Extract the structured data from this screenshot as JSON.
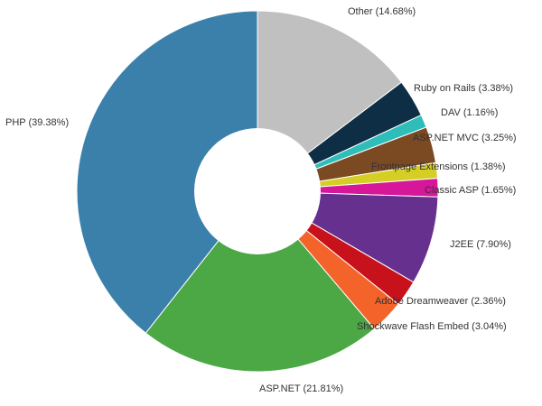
{
  "chart_data": {
    "type": "pie",
    "variant": "donut",
    "title": "",
    "labels": [
      "Other (14.68%)",
      "Ruby on Rails (3.38%)",
      "DAV (1.16%)",
      "ASP.NET MVC (3.25%)",
      "Frontpage Extensions (1.38%)",
      "Classic ASP (1.65%)",
      "J2EE (7.90%)",
      "Adobe Dreamweaver (2.36%)",
      "Shockwave Flash Embed (3.04%)",
      "ASP.NET (21.81%)",
      "PHP (39.38%)"
    ],
    "slices": [
      {
        "name": "Other",
        "value": 14.68,
        "color": "#c0c0c0"
      },
      {
        "name": "Ruby on Rails",
        "value": 3.38,
        "color": "#0e2e45"
      },
      {
        "name": "DAV",
        "value": 1.16,
        "color": "#2ebdb9"
      },
      {
        "name": "ASP.NET MVC",
        "value": 3.25,
        "color": "#7b4a22"
      },
      {
        "name": "Frontpage Extensions",
        "value": 1.38,
        "color": "#d5cf25"
      },
      {
        "name": "Classic ASP",
        "value": 1.65,
        "color": "#d6179a"
      },
      {
        "name": "J2EE",
        "value": 7.9,
        "color": "#66308f"
      },
      {
        "name": "Adobe Dreamweaver",
        "value": 2.36,
        "color": "#c8121b"
      },
      {
        "name": "Shockwave Flash Embed",
        "value": 3.04,
        "color": "#f3632a"
      },
      {
        "name": "ASP.NET",
        "value": 21.81,
        "color": "#4ca745"
      },
      {
        "name": "PHP",
        "value": 39.38,
        "color": "#3a80ab"
      }
    ],
    "legend": "none"
  }
}
